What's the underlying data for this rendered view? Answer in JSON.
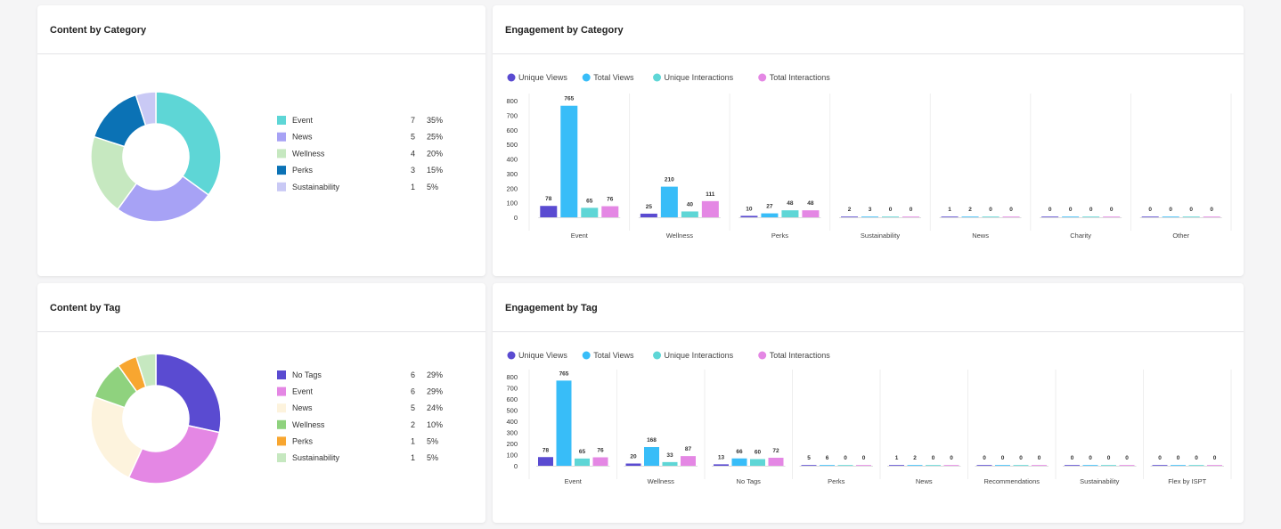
{
  "colors": {
    "unique_views": "#5a4bd1",
    "total_views": "#38bdf8",
    "unique_interactions": "#5ed6d6",
    "total_interactions": "#e487e4"
  },
  "cards": {
    "content_by_category": {
      "title": "Content by Category"
    },
    "engagement_by_category": {
      "title": "Engagement by Category"
    },
    "content_by_tag": {
      "title": "Content by Tag"
    },
    "engagement_by_tag": {
      "title": "Engagement by Tag"
    }
  },
  "chart_data": [
    {
      "id": "content_by_category",
      "type": "pie",
      "title": "Content by Category",
      "slices": [
        {
          "label": "Event",
          "count": "7",
          "percent": "35%",
          "value": 35,
          "color": "#5ed6d6"
        },
        {
          "label": "News",
          "count": "5",
          "percent": "25%",
          "value": 25,
          "color": "#a7a2f5"
        },
        {
          "label": "Wellness",
          "count": "4",
          "percent": "20%",
          "value": 20,
          "color": "#c6e8c0"
        },
        {
          "label": "Perks",
          "count": "3",
          "percent": "15%",
          "value": 15,
          "color": "#0b72b5"
        },
        {
          "label": "Sustainability",
          "count": "1",
          "percent": "5%",
          "value": 5,
          "color": "#c9c9f5"
        }
      ]
    },
    {
      "id": "engagement_by_category",
      "type": "bar",
      "title": "Engagement by Category",
      "legend": [
        "Unique Views",
        "Total Views",
        "Unique Interactions",
        "Total Interactions"
      ],
      "yticks": [
        "800",
        "700",
        "600",
        "500",
        "400",
        "300",
        "200",
        "100",
        "0"
      ],
      "ylim": [
        0,
        800
      ],
      "categories": [
        "Event",
        "Wellness",
        "Perks",
        "Sustainability",
        "News",
        "Charity",
        "Other"
      ],
      "series": [
        {
          "name": "Unique Views",
          "values": [
            78,
            25,
            10,
            2,
            1,
            0,
            0
          ]
        },
        {
          "name": "Total Views",
          "values": [
            765,
            210,
            27,
            3,
            2,
            0,
            0
          ]
        },
        {
          "name": "Unique Interactions",
          "values": [
            65,
            40,
            48,
            0,
            0,
            0,
            0
          ]
        },
        {
          "name": "Total Interactions",
          "values": [
            76,
            111,
            48,
            0,
            0,
            0,
            0
          ]
        }
      ]
    },
    {
      "id": "content_by_tag",
      "type": "pie",
      "title": "Content by Tag",
      "slices": [
        {
          "label": "No Tags",
          "count": "6",
          "percent": "29%",
          "value": 29,
          "color": "#5a4bd1"
        },
        {
          "label": "Event",
          "count": "6",
          "percent": "29%",
          "value": 29,
          "color": "#e487e4"
        },
        {
          "label": "News",
          "count": "5",
          "percent": "24%",
          "value": 24,
          "color": "#fdf3dd"
        },
        {
          "label": "Wellness",
          "count": "2",
          "percent": "10%",
          "value": 10,
          "color": "#8fd27e"
        },
        {
          "label": "Perks",
          "count": "1",
          "percent": "5%",
          "value": 5,
          "color": "#f8a630"
        },
        {
          "label": "Sustainability",
          "count": "1",
          "percent": "5%",
          "value": 5,
          "color": "#c6e8c0"
        }
      ]
    },
    {
      "id": "engagement_by_tag",
      "type": "bar",
      "title": "Engagement by Tag",
      "legend": [
        "Unique Views",
        "Total Views",
        "Unique Interactions",
        "Total Interactions"
      ],
      "yticks": [
        "800",
        "700",
        "600",
        "500",
        "400",
        "300",
        "200",
        "100",
        "0"
      ],
      "ylim": [
        0,
        800
      ],
      "categories": [
        "Event",
        "Wellness",
        "No Tags",
        "Perks",
        "News",
        "Recommendations",
        "Sustainability",
        "Flex by ISPT"
      ],
      "series": [
        {
          "name": "Unique Views",
          "values": [
            78,
            20,
            13,
            5,
            1,
            0,
            0,
            0
          ]
        },
        {
          "name": "Total Views",
          "values": [
            765,
            168,
            66,
            6,
            2,
            0,
            0,
            0
          ]
        },
        {
          "name": "Unique Interactions",
          "values": [
            65,
            33,
            60,
            0,
            0,
            0,
            0,
            0
          ]
        },
        {
          "name": "Total Interactions",
          "values": [
            76,
            87,
            72,
            0,
            0,
            0,
            0,
            0
          ]
        }
      ]
    }
  ]
}
